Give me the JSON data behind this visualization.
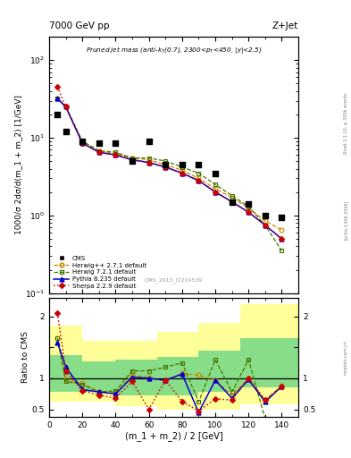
{
  "title_left": "7000 GeV pp",
  "title_right": "Z+Jet",
  "annotation": "Pruned jet mass (anti-k_{T}(0.7), 2300<p_{T}<450, |y|<2.5)",
  "cms_label": "CMS_2013_I1224539",
  "rivet_label": "Rivet 3.1.10, ≥ 500k events",
  "arxiv_label": "[arXiv:1306.3436]",
  "xlabel": "(m_1 + m_2) / 2 [GeV]",
  "ylabel": "1000/σ 2dσ/d(m_1 + m_2) [1/GeV]",
  "ratio_ylabel": "Ratio to CMS",
  "xlim": [
    0,
    150
  ],
  "ylim_main": [
    0.1,
    200
  ],
  "ylim_ratio": [
    0.38,
    2.3
  ],
  "x_cms": [
    5,
    10,
    20,
    30,
    40,
    50,
    60,
    70,
    80,
    90,
    100,
    110,
    120,
    130,
    140
  ],
  "y_cms": [
    20,
    12,
    9.0,
    8.5,
    8.5,
    5.0,
    9.0,
    4.5,
    4.5,
    4.5,
    3.5,
    1.5,
    1.4,
    1.0,
    0.95
  ],
  "x_mc": [
    5,
    10,
    20,
    30,
    40,
    50,
    60,
    70,
    80,
    90,
    100,
    110,
    120,
    130,
    140
  ],
  "y_herwig1": [
    32,
    25,
    9.0,
    6.8,
    6.2,
    5.5,
    5.2,
    4.5,
    3.8,
    3.0,
    2.2,
    1.7,
    1.25,
    0.85,
    0.65
  ],
  "y_herwig2": [
    32,
    25,
    9.0,
    6.8,
    6.5,
    5.5,
    5.5,
    5.0,
    4.2,
    3.5,
    2.5,
    1.8,
    1.3,
    0.75,
    0.35
  ],
  "y_pythia": [
    32,
    25,
    8.5,
    6.5,
    6.0,
    5.2,
    4.8,
    4.2,
    3.5,
    2.8,
    2.0,
    1.5,
    1.1,
    0.75,
    0.5
  ],
  "y_sherpa": [
    45,
    25,
    8.5,
    6.5,
    6.0,
    5.2,
    4.8,
    4.2,
    3.5,
    2.8,
    2.0,
    1.5,
    1.1,
    0.75,
    0.5
  ],
  "ratio_herwig1": [
    1.65,
    0.98,
    0.92,
    0.78,
    0.77,
    1.05,
    1.02,
    0.95,
    1.08,
    1.05,
    0.97,
    0.73,
    1.0,
    0.65,
    0.88
  ],
  "ratio_herwig2": [
    1.65,
    0.95,
    0.9,
    0.78,
    0.8,
    1.12,
    1.12,
    1.18,
    1.25,
    0.62,
    1.3,
    0.78,
    1.3,
    0.35,
    0.33
  ],
  "ratio_pythia": [
    1.58,
    1.18,
    0.82,
    0.78,
    0.75,
    1.02,
    1.0,
    0.97,
    1.07,
    0.45,
    0.97,
    0.68,
    0.98,
    0.62,
    0.87
  ],
  "ratio_sherpa": [
    2.05,
    1.12,
    0.8,
    0.73,
    0.68,
    0.95,
    0.5,
    0.97,
    0.63,
    0.47,
    0.67,
    0.65,
    1.0,
    0.65,
    0.87
  ],
  "color_herwig1": "#cc8800",
  "color_herwig2": "#447700",
  "color_pythia": "#0000cc",
  "color_sherpa": "#cc0000",
  "color_cms": "#000000",
  "band_x_edges": [
    0,
    20,
    40,
    65,
    90,
    115,
    150
  ],
  "band_yellow_lo": [
    0.62,
    0.62,
    0.55,
    0.5,
    0.5,
    0.58
  ],
  "band_yellow_hi": [
    1.85,
    1.6,
    1.6,
    1.75,
    1.9,
    2.2
  ],
  "band_green_lo": [
    0.78,
    0.78,
    0.72,
    0.72,
    0.78,
    0.85
  ],
  "band_green_hi": [
    1.38,
    1.28,
    1.3,
    1.35,
    1.45,
    1.65
  ]
}
